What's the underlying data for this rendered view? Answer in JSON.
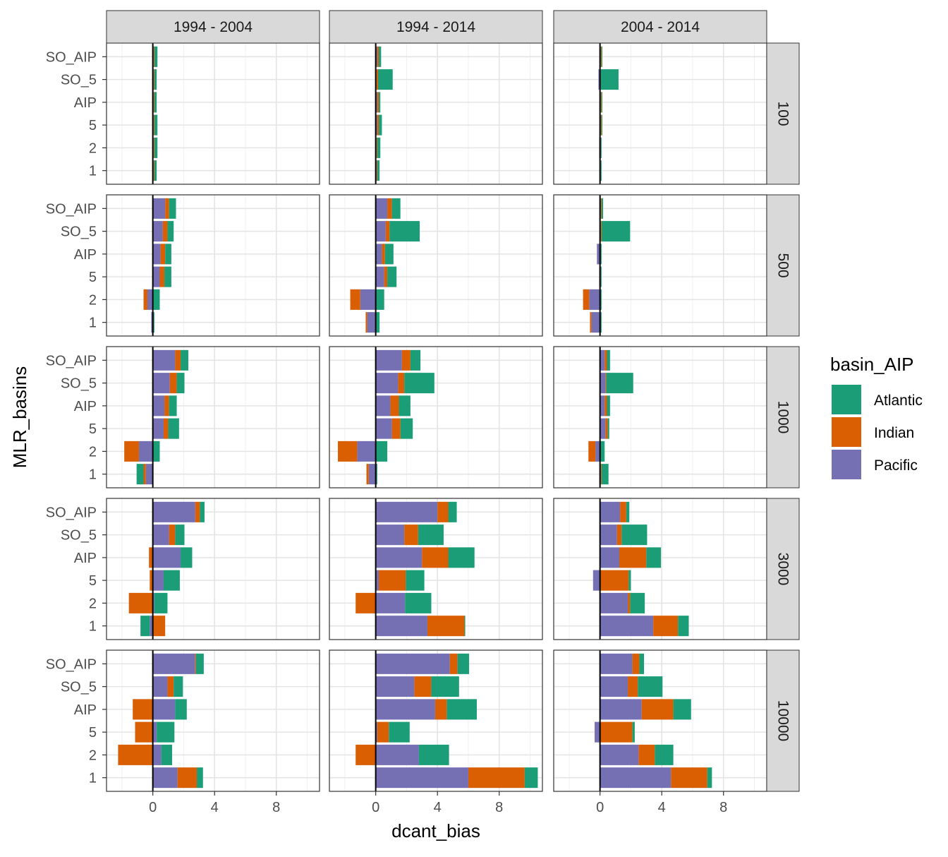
{
  "chart_data": {
    "type": "bar",
    "orientation": "horizontal",
    "stacking": "diverging",
    "xlabel": "dcant_bias",
    "ylabel": "MLR_basins",
    "xlim": [
      -3,
      10.8
    ],
    "x_ticks": [
      0,
      4,
      8
    ],
    "x_tick_labels": [
      "0",
      "4",
      "8"
    ],
    "y_categories": [
      "SO_AIP",
      "SO_5",
      "AIP",
      "5",
      "2",
      "1"
    ],
    "facet_cols": [
      "1994 - 2004",
      "1994 - 2014",
      "2004 - 2014"
    ],
    "facet_rows": [
      "100",
      "500",
      "1000",
      "3000",
      "10000"
    ],
    "grid": true,
    "zero_line": true,
    "legend": {
      "title": "basin_AIP",
      "position": "right",
      "entries": [
        "Atlantic",
        "Indian",
        "Pacific"
      ]
    },
    "colors": {
      "Atlantic": "#1b9e77",
      "Indian": "#d95f02",
      "Pacific": "#7570b3"
    },
    "stack_order": [
      "Pacific",
      "Indian",
      "Atlantic"
    ],
    "panels": [
      {
        "col": "1994 - 2004",
        "row": "100",
        "bars": [
          {
            "y": "SO_AIP",
            "Pacific": 0.05,
            "Indian": 0.05,
            "Atlantic": 0.2
          },
          {
            "y": "SO_5",
            "Pacific": 0.05,
            "Indian": 0.05,
            "Atlantic": 0.15
          },
          {
            "y": "AIP",
            "Pacific": 0.05,
            "Indian": 0.05,
            "Atlantic": 0.15
          },
          {
            "y": "5",
            "Pacific": 0.05,
            "Indian": 0.05,
            "Atlantic": 0.2
          },
          {
            "y": "2",
            "Pacific": 0.05,
            "Indian": 0.05,
            "Atlantic": 0.2
          },
          {
            "y": "1",
            "Pacific": 0.05,
            "Indian": 0.05,
            "Atlantic": 0.15
          }
        ]
      },
      {
        "col": "1994 - 2014",
        "row": "100",
        "bars": [
          {
            "y": "SO_AIP",
            "Pacific": 0.1,
            "Indian": 0.1,
            "Atlantic": 0.15
          },
          {
            "y": "SO_5",
            "Pacific": 0.05,
            "Indian": 0.1,
            "Atlantic": 0.95
          },
          {
            "y": "AIP",
            "Pacific": 0.1,
            "Indian": 0.1,
            "Atlantic": 0.1
          },
          {
            "y": "5",
            "Pacific": 0.1,
            "Indian": 0.1,
            "Atlantic": 0.2
          },
          {
            "y": "2",
            "Pacific": 0.05,
            "Indian": 0.05,
            "Atlantic": 0.2
          },
          {
            "y": "1",
            "Pacific": 0.05,
            "Indian": 0.05,
            "Atlantic": 0.15
          }
        ]
      },
      {
        "col": "2004 - 2014",
        "row": "100",
        "bars": [
          {
            "y": "SO_AIP",
            "Pacific": 0.05,
            "Indian": 0.05,
            "Atlantic": 0.05
          },
          {
            "y": "SO_5",
            "Pacific": -0.1,
            "Indian": 0.05,
            "Atlantic": 1.15
          },
          {
            "y": "AIP",
            "Pacific": 0.05,
            "Indian": 0.05,
            "Atlantic": 0.05
          },
          {
            "y": "5",
            "Pacific": 0.05,
            "Indian": 0.05,
            "Atlantic": 0.05
          },
          {
            "y": "2",
            "Pacific": -0.05,
            "Indian": 0.05,
            "Atlantic": 0.05
          },
          {
            "y": "1",
            "Pacific": 0.05,
            "Indian": 0.0,
            "Atlantic": 0.05
          }
        ]
      },
      {
        "col": "1994 - 2004",
        "row": "500",
        "bars": [
          {
            "y": "SO_AIP",
            "Pacific": 0.8,
            "Indian": 0.25,
            "Atlantic": 0.45
          },
          {
            "y": "SO_5",
            "Pacific": 0.65,
            "Indian": 0.3,
            "Atlantic": 0.4
          },
          {
            "y": "AIP",
            "Pacific": 0.5,
            "Indian": 0.3,
            "Atlantic": 0.4
          },
          {
            "y": "5",
            "Pacific": 0.45,
            "Indian": 0.3,
            "Atlantic": 0.45
          },
          {
            "y": "2",
            "Pacific": -0.35,
            "Indian": -0.25,
            "Atlantic": 0.45
          },
          {
            "y": "1",
            "Pacific": -0.1,
            "Indian": 0.0,
            "Atlantic": 0.1
          }
        ]
      },
      {
        "col": "1994 - 2014",
        "row": "500",
        "bars": [
          {
            "y": "SO_AIP",
            "Pacific": 0.75,
            "Indian": 0.3,
            "Atlantic": 0.55
          },
          {
            "y": "SO_5",
            "Pacific": 0.65,
            "Indian": 0.25,
            "Atlantic": 1.95
          },
          {
            "y": "AIP",
            "Pacific": 0.4,
            "Indian": 0.2,
            "Atlantic": 0.55
          },
          {
            "y": "5",
            "Pacific": 0.55,
            "Indian": 0.2,
            "Atlantic": 0.6
          },
          {
            "y": "2",
            "Pacific": -1.0,
            "Indian": -0.65,
            "Atlantic": 0.55
          },
          {
            "y": "1",
            "Pacific": -0.55,
            "Indian": -0.1,
            "Atlantic": 0.25
          }
        ]
      },
      {
        "col": "2004 - 2014",
        "row": "500",
        "bars": [
          {
            "y": "SO_AIP",
            "Pacific": 0.05,
            "Indian": 0.05,
            "Atlantic": 0.1
          },
          {
            "y": "SO_5",
            "Pacific": 0.05,
            "Indian": 0.05,
            "Atlantic": 1.85
          },
          {
            "y": "AIP",
            "Pacific": -0.2,
            "Indian": 0.0,
            "Atlantic": 0.1
          },
          {
            "y": "5",
            "Pacific": -0.05,
            "Indian": 0.05,
            "Atlantic": 0.05
          },
          {
            "y": "2",
            "Pacific": -0.7,
            "Indian": -0.4,
            "Atlantic": 0.1
          },
          {
            "y": "1",
            "Pacific": -0.55,
            "Indian": -0.1,
            "Atlantic": 0.1
          }
        ]
      },
      {
        "col": "1994 - 2004",
        "row": "1000",
        "bars": [
          {
            "y": "SO_AIP",
            "Pacific": 1.45,
            "Indian": 0.35,
            "Atlantic": 0.5
          },
          {
            "y": "SO_5",
            "Pacific": 1.1,
            "Indian": 0.45,
            "Atlantic": 0.5
          },
          {
            "y": "AIP",
            "Pacific": 0.75,
            "Indian": 0.3,
            "Atlantic": 0.5
          },
          {
            "y": "5",
            "Pacific": 0.7,
            "Indian": 0.3,
            "Atlantic": 0.7
          },
          {
            "y": "2",
            "Pacific": -0.9,
            "Indian": -0.95,
            "Atlantic": 0.45
          },
          {
            "y": "1",
            "Pacific": -0.45,
            "Indian": -0.15,
            "Atlantic": -0.45
          }
        ]
      },
      {
        "col": "1994 - 2014",
        "row": "1000",
        "bars": [
          {
            "y": "SO_AIP",
            "Pacific": 1.7,
            "Indian": 0.55,
            "Atlantic": 0.65
          },
          {
            "y": "SO_5",
            "Pacific": 1.45,
            "Indian": 0.4,
            "Atlantic": 1.95
          },
          {
            "y": "AIP",
            "Pacific": 0.95,
            "Indian": 0.55,
            "Atlantic": 0.75
          },
          {
            "y": "5",
            "Pacific": 1.05,
            "Indian": 0.55,
            "Atlantic": 0.8
          },
          {
            "y": "2",
            "Pacific": -1.2,
            "Indian": -1.25,
            "Atlantic": 0.75
          },
          {
            "y": "1",
            "Pacific": -0.45,
            "Indian": -0.15,
            "Atlantic": 0.1
          }
        ]
      },
      {
        "col": "2004 - 2014",
        "row": "1000",
        "bars": [
          {
            "y": "SO_AIP",
            "Pacific": 0.3,
            "Indian": 0.15,
            "Atlantic": 0.2
          },
          {
            "y": "SO_5",
            "Pacific": 0.35,
            "Indian": 0.05,
            "Atlantic": 1.75
          },
          {
            "y": "AIP",
            "Pacific": 0.3,
            "Indian": 0.15,
            "Atlantic": 0.2
          },
          {
            "y": "5",
            "Pacific": 0.35,
            "Indian": 0.15,
            "Atlantic": 0.1
          },
          {
            "y": "2",
            "Pacific": -0.3,
            "Indian": -0.45,
            "Atlantic": 0.3
          },
          {
            "y": "1",
            "Pacific": 0.05,
            "Indian": 0.05,
            "Atlantic": 0.45
          }
        ]
      },
      {
        "col": "1994 - 2004",
        "row": "3000",
        "bars": [
          {
            "y": "SO_AIP",
            "Pacific": 2.75,
            "Indian": 0.3,
            "Atlantic": 0.3
          },
          {
            "y": "SO_5",
            "Pacific": 1.05,
            "Indian": 0.4,
            "Atlantic": 0.6
          },
          {
            "y": "AIP",
            "Pacific": 1.8,
            "Indian": -0.25,
            "Atlantic": 0.75
          },
          {
            "y": "5",
            "Pacific": 0.7,
            "Indian": -0.2,
            "Atlantic": 1.05
          },
          {
            "y": "2",
            "Pacific": 0.1,
            "Indian": -1.55,
            "Atlantic": 0.85
          },
          {
            "y": "1",
            "Pacific": -0.2,
            "Indian": 0.8,
            "Atlantic": -0.6
          }
        ]
      },
      {
        "col": "1994 - 2014",
        "row": "3000",
        "bars": [
          {
            "y": "SO_AIP",
            "Pacific": 4.0,
            "Indian": 0.7,
            "Atlantic": 0.55
          },
          {
            "y": "SO_5",
            "Pacific": 1.85,
            "Indian": 0.9,
            "Atlantic": 1.65
          },
          {
            "y": "AIP",
            "Pacific": 3.0,
            "Indian": 1.7,
            "Atlantic": 1.7
          },
          {
            "y": "5",
            "Pacific": 0.2,
            "Indian": 1.75,
            "Atlantic": 1.2
          },
          {
            "y": "2",
            "Pacific": 1.9,
            "Indian": -1.3,
            "Atlantic": 1.7
          },
          {
            "y": "1",
            "Pacific": 3.35,
            "Indian": 2.4,
            "Atlantic": 0.05
          }
        ]
      },
      {
        "col": "2004 - 2014",
        "row": "3000",
        "bars": [
          {
            "y": "SO_AIP",
            "Pacific": 1.3,
            "Indian": 0.4,
            "Atlantic": 0.2
          },
          {
            "y": "SO_5",
            "Pacific": 1.1,
            "Indian": 0.3,
            "Atlantic": 1.65
          },
          {
            "y": "AIP",
            "Pacific": 1.25,
            "Indian": 1.75,
            "Atlantic": 0.95
          },
          {
            "y": "5",
            "Pacific": -0.45,
            "Indian": 1.85,
            "Atlantic": 0.15
          },
          {
            "y": "2",
            "Pacific": 1.8,
            "Indian": 0.15,
            "Atlantic": 0.95
          },
          {
            "y": "1",
            "Pacific": 3.45,
            "Indian": 1.6,
            "Atlantic": 0.7
          }
        ]
      },
      {
        "col": "1994 - 2004",
        "row": "10000",
        "bars": [
          {
            "y": "SO_AIP",
            "Pacific": 2.75,
            "Indian": 0.05,
            "Atlantic": 0.5
          },
          {
            "y": "SO_5",
            "Pacific": 0.95,
            "Indian": 0.4,
            "Atlantic": 0.6
          },
          {
            "y": "AIP",
            "Pacific": 1.45,
            "Indian": -1.3,
            "Atlantic": 0.75
          },
          {
            "y": "5",
            "Pacific": 0.25,
            "Indian": -1.15,
            "Atlantic": 1.15
          },
          {
            "y": "2",
            "Pacific": 0.55,
            "Indian": -2.25,
            "Atlantic": 0.7
          },
          {
            "y": "1",
            "Pacific": 1.6,
            "Indian": 1.25,
            "Atlantic": 0.4
          }
        ]
      },
      {
        "col": "1994 - 2014",
        "row": "10000",
        "bars": [
          {
            "y": "SO_AIP",
            "Pacific": 4.8,
            "Indian": 0.5,
            "Atlantic": 0.75
          },
          {
            "y": "SO_5",
            "Pacific": 2.5,
            "Indian": 1.1,
            "Atlantic": 1.8
          },
          {
            "y": "AIP",
            "Pacific": 3.85,
            "Indian": 0.75,
            "Atlantic": 1.95
          },
          {
            "y": "5",
            "Pacific": 0.1,
            "Indian": 0.75,
            "Atlantic": 1.35
          },
          {
            "y": "2",
            "Pacific": 2.8,
            "Indian": -1.3,
            "Atlantic": 1.95
          },
          {
            "y": "1",
            "Pacific": 6.0,
            "Indian": 3.65,
            "Atlantic": 0.85
          }
        ]
      },
      {
        "col": "2004 - 2014",
        "row": "10000",
        "bars": [
          {
            "y": "SO_AIP",
            "Pacific": 2.1,
            "Indian": 0.45,
            "Atlantic": 0.3
          },
          {
            "y": "SO_5",
            "Pacific": 1.8,
            "Indian": 0.65,
            "Atlantic": 1.6
          },
          {
            "y": "AIP",
            "Pacific": 2.7,
            "Indian": 2.05,
            "Atlantic": 1.15
          },
          {
            "y": "5",
            "Pacific": -0.35,
            "Indian": 2.1,
            "Atlantic": 0.15
          },
          {
            "y": "2",
            "Pacific": 2.5,
            "Indian": 1.05,
            "Atlantic": 1.2
          },
          {
            "y": "1",
            "Pacific": 4.6,
            "Indian": 2.35,
            "Atlantic": 0.3
          }
        ]
      }
    ]
  }
}
